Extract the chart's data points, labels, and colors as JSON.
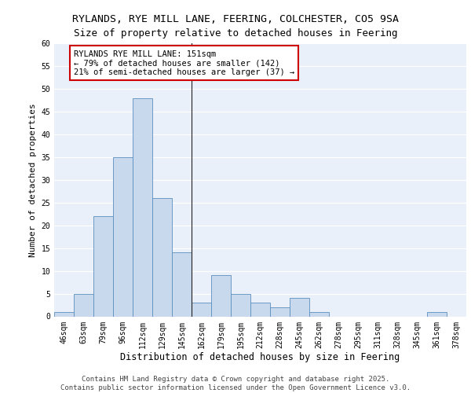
{
  "title1": "RYLANDS, RYE MILL LANE, FEERING, COLCHESTER, CO5 9SA",
  "title2": "Size of property relative to detached houses in Feering",
  "xlabel": "Distribution of detached houses by size in Feering",
  "ylabel": "Number of detached properties",
  "categories": [
    "46sqm",
    "63sqm",
    "79sqm",
    "96sqm",
    "112sqm",
    "129sqm",
    "145sqm",
    "162sqm",
    "179sqm",
    "195sqm",
    "212sqm",
    "228sqm",
    "245sqm",
    "262sqm",
    "278sqm",
    "295sqm",
    "311sqm",
    "328sqm",
    "345sqm",
    "361sqm",
    "378sqm"
  ],
  "values": [
    1,
    5,
    22,
    35,
    48,
    26,
    14,
    3,
    9,
    5,
    3,
    2,
    4,
    1,
    0,
    0,
    0,
    0,
    0,
    1,
    0
  ],
  "bar_color": "#c9d9ed",
  "bar_edge_color": "#5b8fbe",
  "vline_x": 6.5,
  "annotation_text": "RYLANDS RYE MILL LANE: 151sqm\n← 79% of detached houses are smaller (142)\n21% of semi-detached houses are larger (37) →",
  "annotation_box_color": "#ffffff",
  "annotation_box_edge": "#cc0000",
  "ylim": [
    0,
    60
  ],
  "yticks": [
    0,
    5,
    10,
    15,
    20,
    25,
    30,
    35,
    40,
    45,
    50,
    55,
    60
  ],
  "bg_color": "#eaf0f9",
  "footer": "Contains HM Land Registry data © Crown copyright and database right 2025.\nContains public sector information licensed under the Open Government Licence v3.0.",
  "title1_fontsize": 9.5,
  "title2_fontsize": 9,
  "xlabel_fontsize": 8.5,
  "ylabel_fontsize": 8,
  "tick_fontsize": 7,
  "footer_fontsize": 6.5,
  "annot_fontsize": 7.5
}
